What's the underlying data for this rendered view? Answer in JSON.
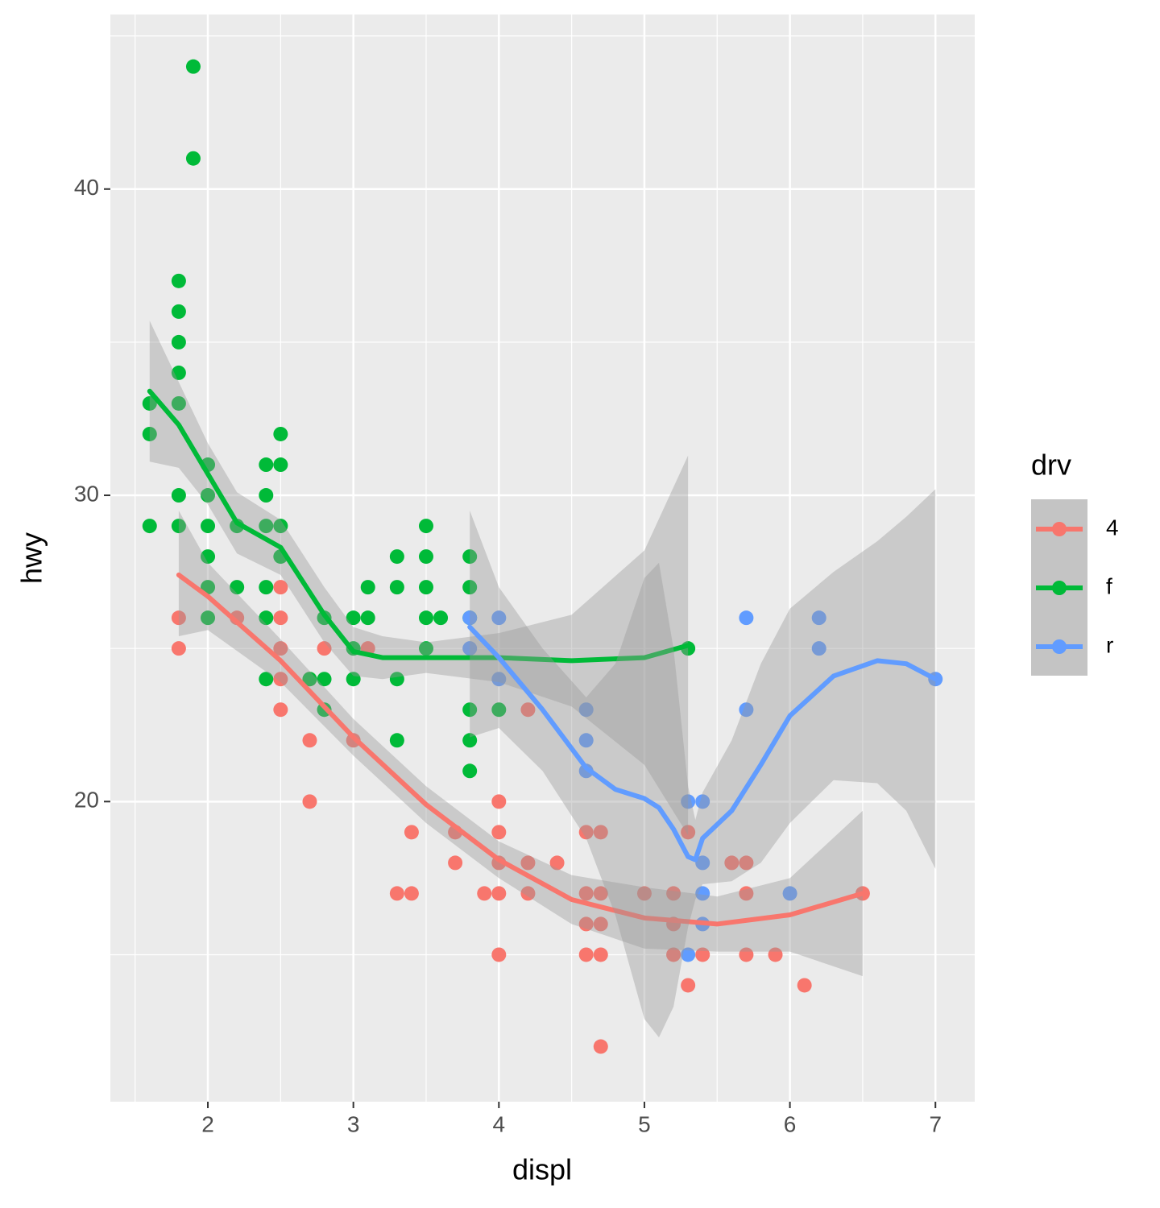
{
  "chart_data": {
    "type": "scatter",
    "xlabel": "displ",
    "ylabel": "hwy",
    "legend_title": "drv",
    "legend": "right",
    "grid": true,
    "xlim": [
      1.33,
      7.27
    ],
    "ylim": [
      10.2,
      45.7
    ],
    "xticks": [
      2,
      3,
      4,
      5,
      6,
      7
    ],
    "yticks": [
      20,
      30,
      40
    ],
    "xminor": [
      1.5,
      2.5,
      3.5,
      4.5,
      5.5,
      6.5
    ],
    "yminor": [
      15,
      25,
      35,
      45
    ],
    "series": [
      {
        "name": "4",
        "color": "#F8766D",
        "x": [
          1.8,
          1.8,
          2.2,
          2.5,
          2.5,
          2.5,
          2.5,
          2.5,
          2.7,
          2.7,
          2.7,
          2.8,
          3.0,
          3.1,
          3.3,
          3.4,
          3.4,
          3.7,
          3.7,
          3.9,
          4.0,
          4.0,
          4.0,
          4.0,
          4.0,
          4.2,
          4.2,
          4.2,
          4.4,
          4.6,
          4.6,
          4.6,
          4.6,
          4.7,
          4.7,
          4.7,
          4.7,
          4.7,
          5.0,
          5.2,
          5.2,
          5.2,
          5.3,
          5.3,
          5.4,
          5.6,
          5.7,
          5.7,
          5.7,
          5.9,
          6.1,
          6.5
        ],
        "y": [
          26,
          25,
          26,
          27,
          26,
          25,
          24,
          23,
          24,
          22,
          20,
          25,
          22,
          25,
          17,
          19,
          17,
          19,
          18,
          17,
          20,
          19,
          18,
          17,
          15,
          23,
          18,
          17,
          18,
          19,
          17,
          16,
          15,
          19,
          17,
          16,
          15,
          12,
          17,
          17,
          16,
          15,
          19,
          14,
          15,
          18,
          18,
          17,
          15,
          15,
          14,
          17
        ],
        "fit_x": [
          1.8,
          2.0,
          2.5,
          3.0,
          3.5,
          4.0,
          4.5,
          5.0,
          5.5,
          6.0,
          6.5
        ],
        "fit_y": [
          27.4,
          26.7,
          24.6,
          22.1,
          19.9,
          18.1,
          16.8,
          16.2,
          16.0,
          16.3,
          17.0
        ],
        "fit_lower": [
          25.4,
          25.6,
          23.9,
          21.5,
          19.3,
          17.5,
          16.0,
          15.2,
          15.1,
          15.1,
          14.3
        ],
        "fit_upper": [
          29.5,
          27.8,
          25.3,
          22.7,
          20.5,
          18.7,
          17.6,
          17.2,
          16.9,
          17.5,
          19.7
        ]
      },
      {
        "name": "f",
        "color": "#00BA38",
        "x": [
          1.6,
          1.6,
          1.6,
          1.8,
          1.8,
          1.8,
          1.8,
          1.8,
          1.8,
          1.8,
          1.9,
          1.9,
          2.0,
          2.0,
          2.0,
          2.0,
          2.0,
          2.0,
          2.2,
          2.2,
          2.4,
          2.4,
          2.4,
          2.4,
          2.4,
          2.4,
          2.5,
          2.5,
          2.5,
          2.5,
          2.7,
          2.8,
          2.8,
          2.8,
          3.0,
          3.0,
          3.0,
          3.1,
          3.1,
          3.3,
          3.3,
          3.3,
          3.3,
          3.5,
          3.5,
          3.5,
          3.5,
          3.5,
          3.6,
          3.8,
          3.8,
          3.8,
          3.8,
          3.8,
          3.8,
          4.0,
          5.3
        ],
        "y": [
          33,
          32,
          29,
          37,
          36,
          35,
          34,
          33,
          30,
          29,
          44,
          41,
          31,
          30,
          29,
          28,
          27,
          26,
          29,
          27,
          31,
          30,
          29,
          27,
          26,
          24,
          32,
          31,
          29,
          28,
          24,
          26,
          24,
          23,
          26,
          25,
          24,
          27,
          26,
          28,
          27,
          24,
          22,
          29,
          28,
          27,
          26,
          25,
          26,
          28,
          27,
          26,
          23,
          22,
          21,
          23,
          25
        ],
        "fit_x": [
          1.6,
          1.8,
          2.0,
          2.2,
          2.5,
          2.8,
          3.0,
          3.2,
          3.5,
          4.0,
          4.5,
          5.0,
          5.3
        ],
        "fit_y": [
          33.4,
          32.3,
          30.7,
          29.1,
          28.3,
          26.1,
          24.9,
          24.7,
          24.7,
          24.7,
          24.6,
          24.7,
          25.1
        ],
        "fit_lower": [
          31.1,
          30.9,
          29.7,
          28.1,
          27.4,
          25.2,
          24.1,
          24.0,
          24.2,
          23.9,
          23.1,
          21.2,
          18.9
        ],
        "fit_upper": [
          35.7,
          33.7,
          31.7,
          30.1,
          29.2,
          27.0,
          25.7,
          25.4,
          25.2,
          25.5,
          26.1,
          28.2,
          31.3
        ]
      },
      {
        "name": "r",
        "color": "#619CFF",
        "x": [
          3.8,
          3.8,
          4.0,
          4.0,
          4.6,
          4.6,
          4.6,
          5.3,
          5.3,
          5.4,
          5.4,
          5.4,
          5.4,
          5.7,
          5.7,
          6.0,
          6.2,
          6.2,
          7.0
        ],
        "y": [
          26,
          25,
          26,
          24,
          23,
          22,
          21,
          20,
          15,
          20,
          18,
          17,
          16,
          26,
          23,
          17,
          26,
          25,
          24
        ],
        "fit_x": [
          3.8,
          4.0,
          4.3,
          4.6,
          4.8,
          5.0,
          5.1,
          5.2,
          5.3,
          5.35,
          5.4,
          5.6,
          5.8,
          6.0,
          6.3,
          6.6,
          6.8,
          7.0
        ],
        "fit_y": [
          25.7,
          24.7,
          23.0,
          21.1,
          20.4,
          20.1,
          19.8,
          19.1,
          18.2,
          18.1,
          18.8,
          19.7,
          21.2,
          22.8,
          24.1,
          24.6,
          24.5,
          24.0
        ],
        "fit_lower": [
          22.1,
          22.4,
          21.0,
          18.8,
          16.3,
          12.9,
          12.3,
          13.3,
          15.9,
          16.8,
          17.3,
          17.4,
          18.0,
          19.3,
          20.7,
          20.6,
          19.7,
          17.8
        ],
        "fit_upper": [
          29.5,
          27.0,
          25.0,
          23.4,
          24.5,
          27.3,
          27.8,
          25.0,
          20.5,
          19.4,
          20.3,
          22.0,
          24.5,
          26.3,
          27.5,
          28.5,
          29.3,
          30.2
        ]
      }
    ]
  }
}
